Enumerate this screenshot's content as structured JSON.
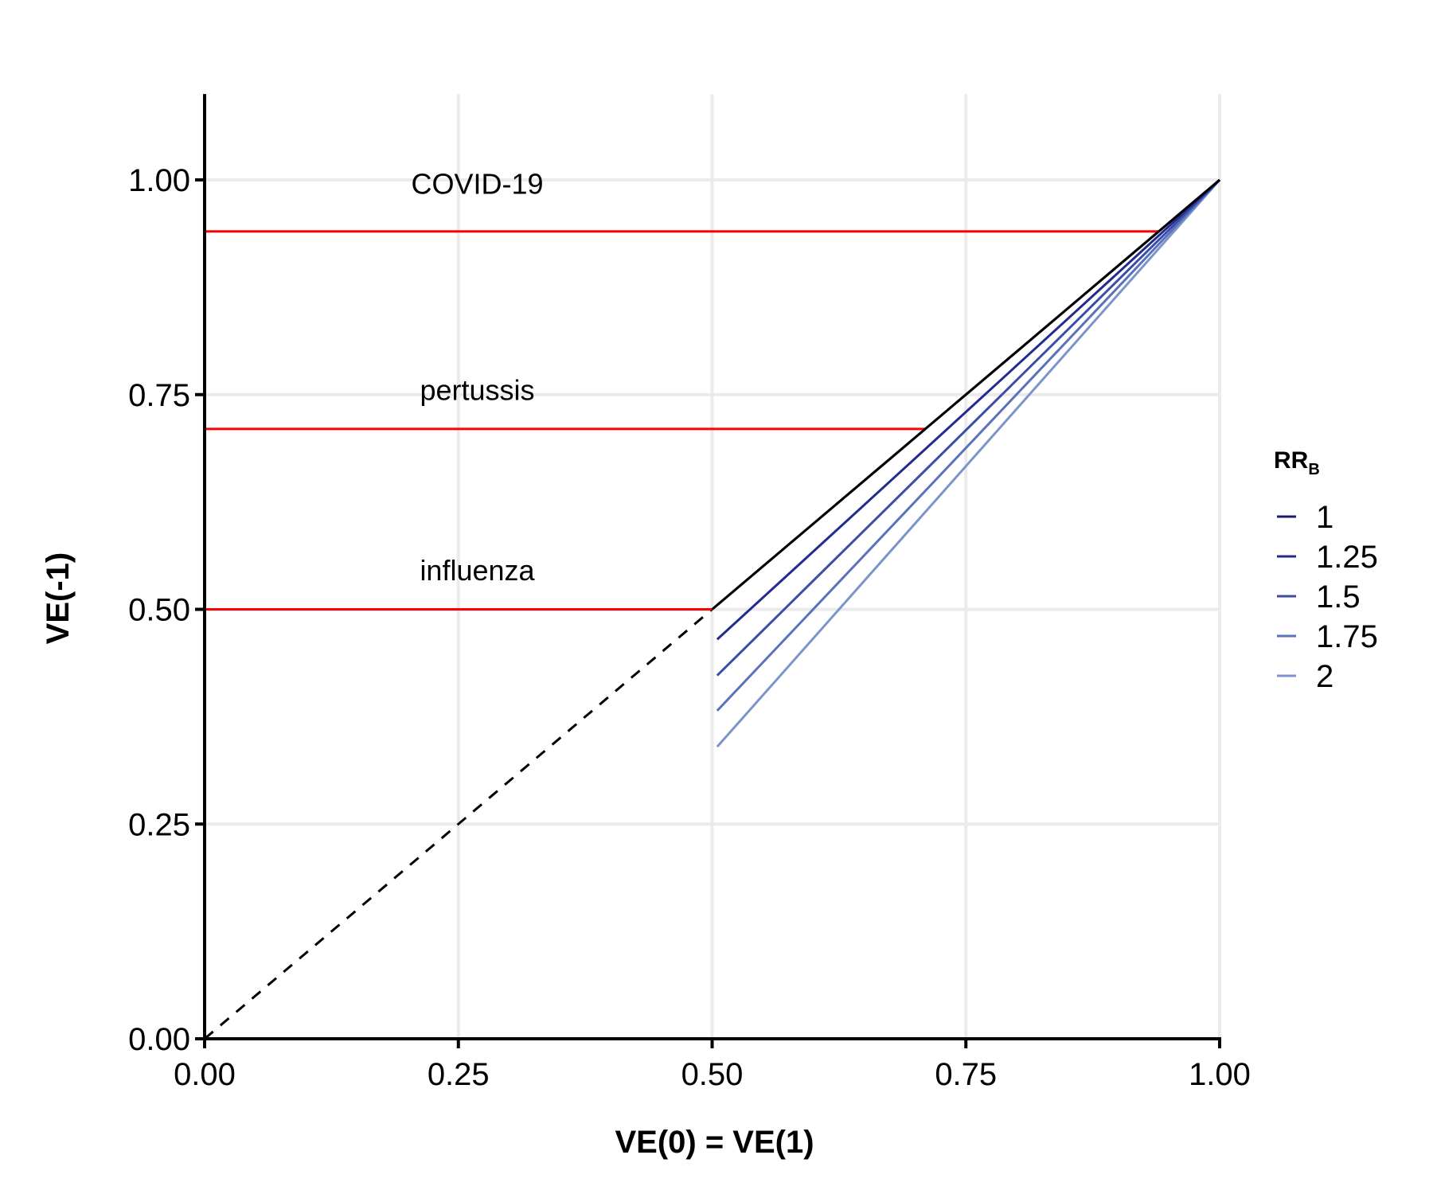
{
  "chart_data": {
    "type": "line",
    "xlabel": "VE(0) = VE(1)",
    "ylabel": "VE(-1)",
    "xlim": [
      0,
      1
    ],
    "ylim": [
      0,
      1.1
    ],
    "x_ticks": [
      "0.00",
      "0.25",
      "0.50",
      "0.75",
      "1.00"
    ],
    "y_ticks": [
      "0.00",
      "0.25",
      "0.50",
      "0.75",
      "1.00"
    ],
    "x_tick_values": [
      0,
      0.25,
      0.5,
      0.75,
      1.0
    ],
    "y_tick_values": [
      0,
      0.25,
      0.5,
      0.75,
      1.0
    ],
    "grid": true,
    "reference_line": {
      "dashed": {
        "x": [
          0,
          0.5
        ],
        "y": [
          0,
          0.5
        ],
        "color": "#000000"
      },
      "solid": {
        "x": [
          0.5,
          1.0
        ],
        "y": [
          0.5,
          1.0
        ],
        "color": "#000000"
      }
    },
    "annotations": [
      {
        "label": "COVID-19",
        "ve": 0.94,
        "label_x": 0.3,
        "label_y": 0.995
      },
      {
        "label": "pertussis",
        "ve": 0.71,
        "label_x": 0.3,
        "label_y": 0.755
      },
      {
        "label": "influenza",
        "ve": 0.5,
        "label_x": 0.3,
        "label_y": 0.545
      }
    ],
    "annotation_color": "#ff0000",
    "legend": {
      "title": "RR",
      "title_subscript": "B",
      "position": "right"
    },
    "series": [
      {
        "name": "1",
        "color": "#1a1a6e",
        "x": [
          0.505,
          1.0
        ],
        "y": [
          0.505,
          1.0
        ]
      },
      {
        "name": "1.25",
        "color": "#232b8f",
        "x": [
          0.505,
          1.0
        ],
        "y": [
          0.465,
          1.0
        ]
      },
      {
        "name": "1.5",
        "color": "#3a4ea8",
        "x": [
          0.505,
          1.0
        ],
        "y": [
          0.423,
          1.0
        ]
      },
      {
        "name": "1.75",
        "color": "#5a72bb",
        "x": [
          0.505,
          1.0
        ],
        "y": [
          0.382,
          1.0
        ]
      },
      {
        "name": "2",
        "color": "#7b95c9",
        "x": [
          0.505,
          1.0
        ],
        "y": [
          0.34,
          1.0
        ]
      }
    ]
  }
}
